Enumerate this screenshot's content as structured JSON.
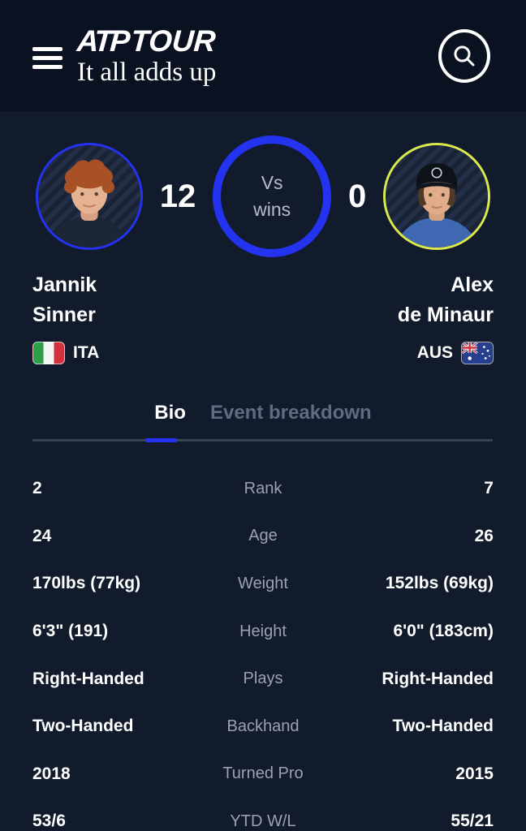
{
  "header": {
    "logo_atp": "ATP",
    "logo_tour": "TOUR",
    "tagline": "It all adds up"
  },
  "h2h": {
    "left_wins": "12",
    "right_wins": "0",
    "vs_line1": "Vs",
    "vs_line2": "wins",
    "left_player": {
      "first": "Jannik",
      "last": "Sinner",
      "country": "ITA"
    },
    "right_player": {
      "first": "Alex",
      "last": "de Minaur",
      "country": "AUS"
    }
  },
  "tabs": [
    {
      "label": "Bio",
      "active": true
    },
    {
      "label": "Event breakdown",
      "active": false
    }
  ],
  "stats": {
    "rows": [
      {
        "label": "Rank",
        "left": "2",
        "right": "7"
      },
      {
        "label": "Age",
        "left": "24",
        "right": "26"
      },
      {
        "label": "Weight",
        "left": "170lbs (77kg)",
        "right": "152lbs (69kg)"
      },
      {
        "label": "Height",
        "left": "6'3\" (191)",
        "right": "6'0\" (183cm)"
      },
      {
        "label": "Plays",
        "left": "Right-Handed",
        "right": "Right-Handed"
      },
      {
        "label": "Backhand",
        "left": "Two-Handed",
        "right": "Two-Handed"
      },
      {
        "label": "Turned Pro",
        "left": "2018",
        "right": "2015"
      },
      {
        "label": "YTD W/L",
        "left": "53/6",
        "right": "55/21"
      }
    ]
  },
  "colors": {
    "accent-blue": "#2433f0",
    "lime": "#dbe94f",
    "bg-header": "#0a1120",
    "bg-main": "#111b2c",
    "label-gray": "#9aa2b0",
    "tab-inactive": "#5f6b80"
  }
}
